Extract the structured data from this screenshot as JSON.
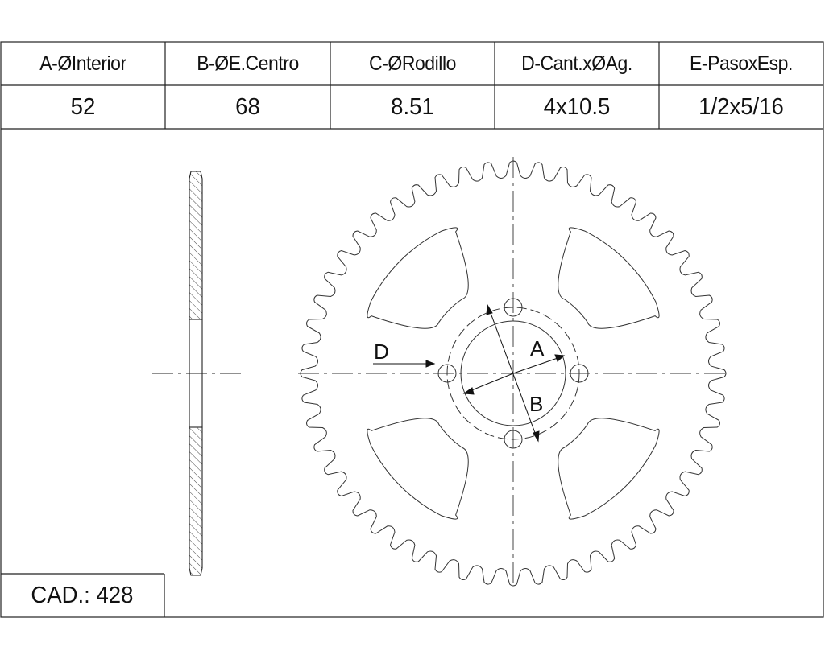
{
  "table": {
    "columns": [
      {
        "header": "A-ØInterior",
        "value": "52"
      },
      {
        "header": "B-ØE.Centro",
        "value": "68"
      },
      {
        "header": "C-ØRodillo",
        "value": "8.51"
      },
      {
        "header": "D-Cant.xØAg.",
        "value": "4x10.5"
      },
      {
        "header": "E-PasoxEsp.",
        "value": "1/2x5/16"
      }
    ]
  },
  "cad": {
    "label": "CAD.: 428"
  },
  "drawing": {
    "labels": {
      "a": "A",
      "b": "B",
      "d": "D"
    },
    "teeth_count": 52,
    "bolt_holes": 4,
    "cutouts": 4
  }
}
